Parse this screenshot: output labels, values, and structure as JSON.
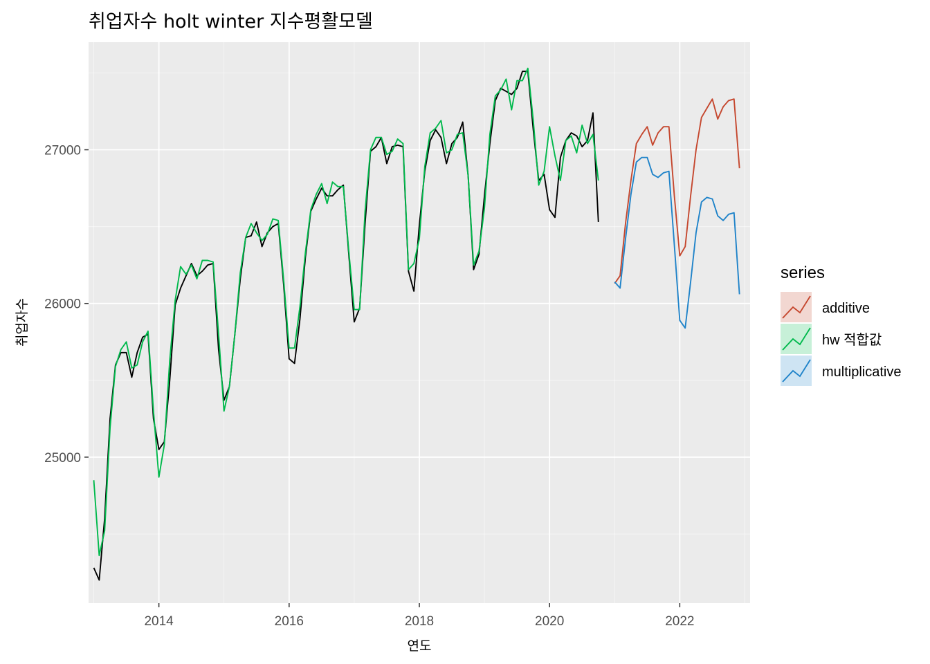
{
  "title": "취업자수 holt winter 지수평활모델",
  "colors": {
    "panel": "#ebebeb",
    "grid_major": "#ffffff",
    "actual": "#000000",
    "additive": "#c5472e",
    "hw_fit": "#00b94c",
    "multiplicative": "#1f83c9"
  },
  "chart_data": {
    "type": "line",
    "title": "취업자수 holt winter 지수평활모델",
    "xlabel": "연도",
    "ylabel": "취업자수",
    "xlim": [
      2012.92,
      2023.08
    ],
    "ylim": [
      24050,
      27700
    ],
    "x_ticks": [
      2014,
      2016,
      2018,
      2020,
      2022
    ],
    "x_tick_labels": [
      "2014",
      "2016",
      "2018",
      "2020",
      "2022"
    ],
    "y_ticks": [
      25000,
      26000,
      27000
    ],
    "y_tick_labels": [
      "25000",
      "26000",
      "27000"
    ],
    "grid": true,
    "legend": {
      "title": "series",
      "position": "right",
      "entries": [
        {
          "key": "additive",
          "label": "additive",
          "color": "#c5472e"
        },
        {
          "key": "hw_fit",
          "label": "hw 적합값",
          "color": "#00b94c"
        },
        {
          "key": "multiplicative",
          "label": "multiplicative",
          "color": "#1f83c9"
        }
      ]
    },
    "series": [
      {
        "key": "actual",
        "color": "#000000",
        "x_start": 2013,
        "step": 0.08333333,
        "values": [
          24280,
          24200,
          24600,
          25250,
          25600,
          25680,
          25680,
          25520,
          25680,
          25780,
          25800,
          25250,
          25050,
          25100,
          25500,
          25990,
          26100,
          26180,
          26260,
          26180,
          26210,
          26250,
          26260,
          25700,
          25370,
          25460,
          25800,
          26160,
          26430,
          26440,
          26530,
          26370,
          26460,
          26500,
          26520,
          26120,
          25640,
          25610,
          25900,
          26300,
          26600,
          26680,
          26750,
          26700,
          26700,
          26740,
          26770,
          26320,
          25880,
          25970,
          26520,
          26990,
          27020,
          27080,
          26910,
          27020,
          27030,
          27020,
          26210,
          26080,
          26510,
          26860,
          27060,
          27130,
          27080,
          26910,
          27040,
          27080,
          27180,
          26830,
          26220,
          26320,
          26700,
          27040,
          27320,
          27400,
          27380,
          27360,
          27400,
          27510,
          27510,
          27130,
          26800,
          26840,
          26610,
          26560,
          26950,
          27060,
          27110,
          27090,
          27020,
          27060,
          27240,
          26530
        ]
      },
      {
        "key": "hw_fit",
        "color": "#00b94c",
        "x_start": 2013,
        "step": 0.08333333,
        "values": [
          24850,
          24360,
          24520,
          25190,
          25590,
          25700,
          25750,
          25580,
          25600,
          25750,
          25820,
          25300,
          24870,
          25080,
          25630,
          26020,
          26240,
          26190,
          26250,
          26160,
          26280,
          26280,
          26270,
          25800,
          25300,
          25460,
          25800,
          26200,
          26430,
          26520,
          26460,
          26410,
          26450,
          26550,
          26540,
          26150,
          25710,
          25710,
          25980,
          26330,
          26610,
          26710,
          26780,
          26650,
          26790,
          26760,
          26760,
          26340,
          25960,
          25960,
          26600,
          27000,
          27080,
          27080,
          26970,
          26990,
          27070,
          27040,
          26220,
          26260,
          26420,
          26890,
          27110,
          27140,
          27190,
          26980,
          27000,
          27100,
          27110,
          26830,
          26250,
          26340,
          26620,
          27100,
          27350,
          27390,
          27460,
          27260,
          27450,
          27450,
          27530,
          27190,
          26770,
          26860,
          27150,
          26960,
          26800,
          27060,
          27090,
          26980,
          27160,
          27040,
          27100,
          26800
        ]
      },
      {
        "key": "additive",
        "color": "#c5472e",
        "x_start": 2021,
        "step": 0.08333333,
        "values": [
          26130,
          26180,
          26520,
          26800,
          27040,
          27100,
          27150,
          27030,
          27110,
          27150,
          27150,
          26700,
          26310,
          26370,
          26700,
          27000,
          27210,
          27270,
          27330,
          27200,
          27280,
          27320,
          27330,
          26880
        ]
      },
      {
        "key": "multiplicative",
        "color": "#1f83c9",
        "x_start": 2021,
        "step": 0.08333333,
        "values": [
          26140,
          26100,
          26420,
          26710,
          26920,
          26950,
          26950,
          26840,
          26820,
          26850,
          26860,
          26380,
          25890,
          25840,
          26140,
          26460,
          26660,
          26690,
          26680,
          26570,
          26540,
          26580,
          26590,
          26060
        ]
      }
    ]
  }
}
